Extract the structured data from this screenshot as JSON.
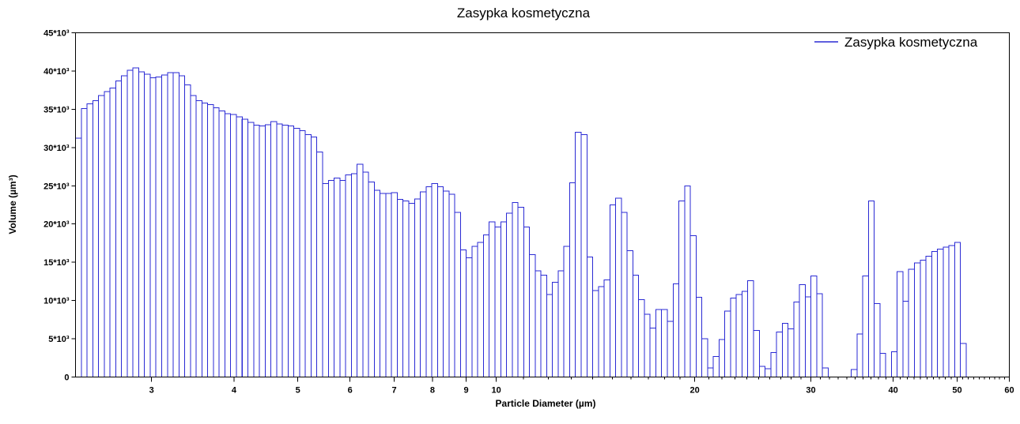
{
  "chart_data": {
    "type": "bar",
    "title": "Zasypka kosmetyczna",
    "xlabel": "Particle Diameter (µm)",
    "ylabel": "Volume (µm³)",
    "x_scale": "log",
    "xlim": [
      2.3,
      60
    ],
    "ylim": [
      0,
      45000
    ],
    "x_ticks": [
      {
        "value": 3,
        "label": "3"
      },
      {
        "value": 4,
        "label": "4"
      },
      {
        "value": 5,
        "label": "5"
      },
      {
        "value": 6,
        "label": "6"
      },
      {
        "value": 7,
        "label": "7"
      },
      {
        "value": 8,
        "label": "8"
      },
      {
        "value": 9,
        "label": "9"
      },
      {
        "value": 10,
        "label": "10"
      },
      {
        "value": 20,
        "label": "20"
      },
      {
        "value": 30,
        "label": "30"
      },
      {
        "value": 40,
        "label": "40"
      },
      {
        "value": 50,
        "label": "50"
      },
      {
        "value": 60,
        "label": "60"
      }
    ],
    "y_ticks": [
      {
        "value": 0,
        "label": "0"
      },
      {
        "value": 5000,
        "label": "5*10³"
      },
      {
        "value": 10000,
        "label": "10*10³"
      },
      {
        "value": 15000,
        "label": "15*10³"
      },
      {
        "value": 20000,
        "label": "20*10³"
      },
      {
        "value": 25000,
        "label": "25*10³"
      },
      {
        "value": 30000,
        "label": "30*10³"
      },
      {
        "value": 35000,
        "label": "35*10³"
      },
      {
        "value": 40000,
        "label": "40*10³"
      },
      {
        "value": 45000,
        "label": "45*10³"
      }
    ],
    "legend": {
      "position": "top-right",
      "entries": [
        "Zasypka kosmetyczna"
      ]
    },
    "grid": false,
    "series_color": "#2a2ad4",
    "series": [
      {
        "name": "Zasypka kosmetyczna",
        "bin_edges_start": 2.3,
        "bin_edges_end": 51.6,
        "values": [
          31200,
          35100,
          35700,
          36100,
          36800,
          37300,
          37800,
          38700,
          39400,
          40100,
          40400,
          39900,
          39600,
          39100,
          39200,
          39500,
          39800,
          39800,
          39400,
          38200,
          36800,
          36100,
          35800,
          35600,
          35200,
          34800,
          34400,
          34300,
          34000,
          33700,
          33300,
          32900,
          32800,
          33000,
          33400,
          33100,
          32900,
          32800,
          32500,
          32200,
          31700,
          31400,
          29400,
          25300,
          25700,
          26000,
          25700,
          26400,
          26600,
          27800,
          26800,
          25500,
          24400,
          24000,
          24000,
          24100,
          23200,
          23000,
          22700,
          23300,
          24200,
          24900,
          25300,
          24900,
          24300,
          23900,
          21500,
          16600,
          15600,
          17100,
          17600,
          18600,
          20300,
          19600,
          20300,
          21400,
          22800,
          22200,
          19600,
          16000,
          13900,
          13300,
          10800,
          12400,
          13900,
          17100,
          25400,
          32000,
          31700,
          15700,
          11300,
          11800,
          12700,
          22500,
          23400,
          21500,
          16500,
          13300,
          10100,
          8200,
          6400,
          8800,
          8800,
          7300,
          12200,
          23000,
          25000,
          18500,
          10400,
          5000,
          1200,
          2700,
          4900,
          8600,
          10300,
          10800,
          11200,
          12600,
          6100,
          1400,
          1100,
          3200,
          5900,
          7000,
          6300,
          9800,
          12100,
          10500,
          13200,
          10900,
          1200,
          0,
          0,
          0,
          0,
          1000,
          5600,
          13200,
          23000,
          9600,
          3100,
          0,
          3300,
          13800,
          9900,
          14100,
          14900,
          15300,
          15800,
          16400,
          16700,
          17000,
          17200,
          17600,
          4400
        ]
      }
    ]
  }
}
